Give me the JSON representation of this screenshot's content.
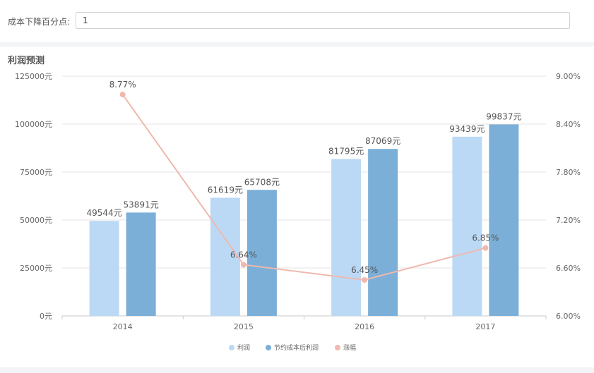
{
  "form": {
    "label": "成本下降百分点:",
    "value": "1"
  },
  "panel": {
    "title": "利润预测"
  },
  "chart_data": {
    "type": "bar",
    "categories": [
      "2014",
      "2015",
      "2016",
      "2017"
    ],
    "series": [
      {
        "name": "利润",
        "kind": "bar",
        "axis": "left",
        "color": "#bbd9f5",
        "values": [
          49544,
          61619,
          81795,
          93439
        ],
        "labels": [
          "49544元",
          "61619元",
          "81795元",
          "93439元"
        ]
      },
      {
        "name": "节约成本后利润",
        "kind": "bar",
        "axis": "left",
        "color": "#7bafd8",
        "values": [
          53891,
          65708,
          87069,
          99837
        ],
        "labels": [
          "53891元",
          "65708元",
          "87069元",
          "99837元"
        ]
      },
      {
        "name": "涨幅",
        "kind": "line",
        "axis": "right",
        "color": "#f0b8ae",
        "values": [
          8.77,
          6.64,
          6.45,
          6.85
        ],
        "labels": [
          "8.77%",
          "6.64%",
          "6.45%",
          "6.85%"
        ]
      }
    ],
    "y_left": {
      "range": [
        0,
        125000
      ],
      "ticks": [
        "0元",
        "25000元",
        "50000元",
        "75000元",
        "100000元",
        "125000元"
      ]
    },
    "y_right": {
      "range": [
        6.0,
        9.0
      ],
      "ticks": [
        "6.00%",
        "6.60%",
        "7.20%",
        "7.80%",
        "8.40%",
        "9.00%"
      ]
    },
    "grid": true,
    "legend": "bottom-center"
  }
}
